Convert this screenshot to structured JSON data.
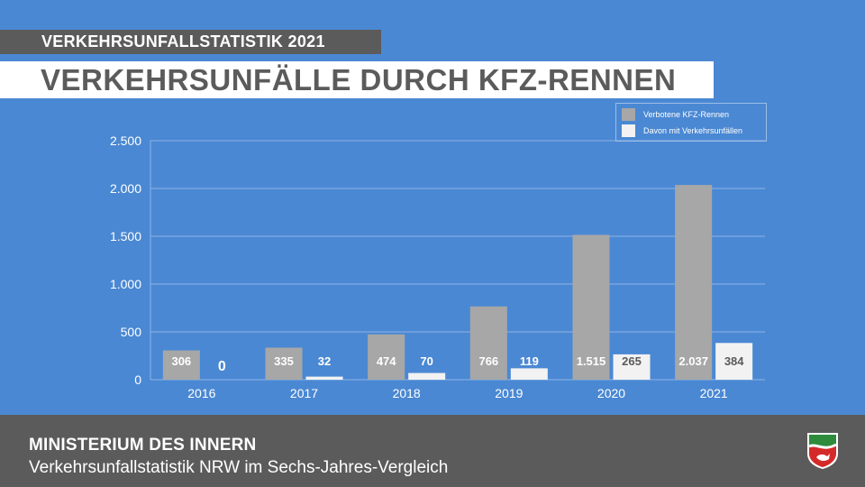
{
  "kicker": "VERKEHRSUNFALLSTATISTIK 2021",
  "headline": "VERKEHRSUNFÄLLE DURCH KFZ-RENNEN",
  "footer": {
    "org": "MINISTERIUM DES INNERN",
    "subtitle": "Verkehrsunfallstatistik NRW im Sechs-Jahres-Vergleich"
  },
  "colors": {
    "background": "#4a88d3",
    "bar_primary": "#a7a7a7",
    "bar_secondary": "#f2f2f2",
    "bar_label_dark": "#ffffff",
    "bar_label_light": "#5b5b5b",
    "footer": "#5b5b5b"
  },
  "crest_icon": "nrw-coat-of-arms-icon",
  "chart_data": {
    "type": "bar",
    "categories": [
      "2016",
      "2017",
      "2018",
      "2019",
      "2020",
      "2021"
    ],
    "series": [
      {
        "name": "Verbotene KFZ-Rennen",
        "values": [
          306,
          335,
          474,
          766,
          1515,
          2037
        ],
        "labels": [
          "306",
          "335",
          "474",
          "766",
          "1.515",
          "2.037"
        ]
      },
      {
        "name": "Davon mit Verkehrsunfällen",
        "values": [
          0,
          32,
          70,
          119,
          265,
          384
        ],
        "labels": [
          "0",
          "32",
          "70",
          "119",
          "265",
          "384"
        ]
      }
    ],
    "yticks": [
      0,
      500,
      1000,
      1500,
      2000,
      2500
    ],
    "ytick_labels": [
      "0",
      "500",
      "1.000",
      "1.500",
      "2.000",
      "2.500"
    ],
    "ylim": [
      0,
      2500
    ],
    "grid": true,
    "legend": "top-right"
  }
}
